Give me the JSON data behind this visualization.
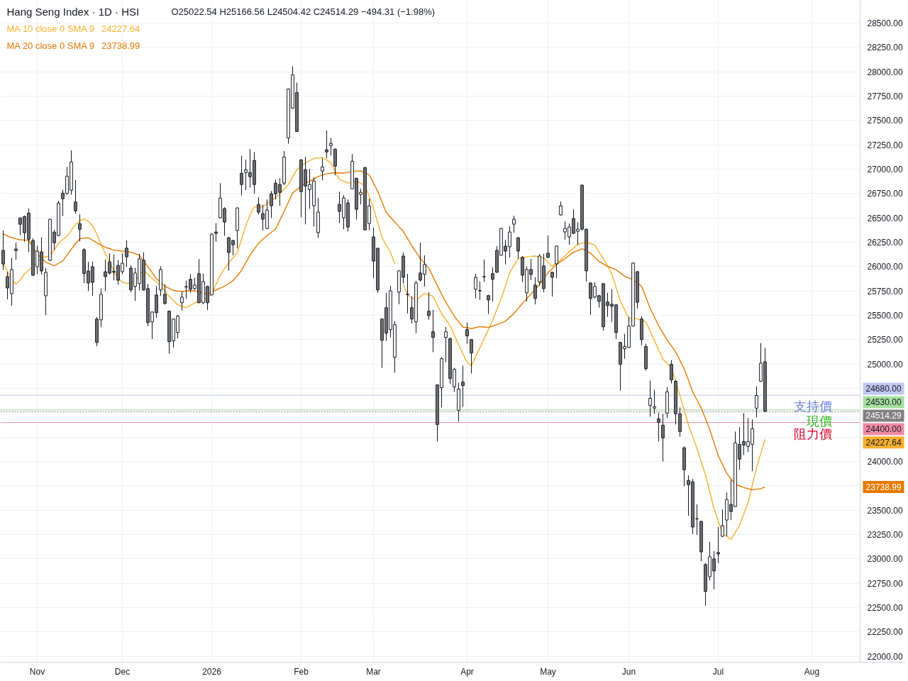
{
  "chart_data": {
    "type": "candlestick",
    "title": "Hang Seng Index · 1D · HSI",
    "subtitle": "O25022.54 H25166.56 L24504.42 C24514.29 −494.31 (−1.98%)",
    "color": "#131722",
    "categories": [
      null,
      null,
      null,
      null,
      null,
      null,
      null,
      null,
      "Nov",
      null,
      null,
      null,
      null,
      null,
      null,
      null,
      null,
      null,
      null,
      null,
      null,
      null,
      null,
      null,
      null,
      null,
      null,
      null,
      "Dec",
      null,
      null,
      null,
      null,
      null,
      null,
      null,
      null,
      null,
      null,
      null,
      null,
      null,
      null,
      null,
      null,
      null,
      null,
      null,
      null,
      "2026",
      null,
      null,
      null,
      null,
      null,
      null,
      null,
      null,
      null,
      null,
      null,
      null,
      null,
      null,
      null,
      null,
      null,
      null,
      null,
      null,
      "Feb",
      null,
      null,
      null,
      null,
      null,
      null,
      null,
      null,
      null,
      null,
      null,
      null,
      null,
      null,
      null,
      null,
      "Mar",
      null,
      null,
      null,
      null,
      null,
      null,
      null,
      null,
      null,
      null,
      null,
      null,
      null,
      null,
      null,
      null,
      null,
      null,
      null,
      null,
      null,
      "Apr",
      null,
      null,
      null,
      null,
      null,
      null,
      null,
      null,
      null,
      null,
      null,
      null,
      null,
      null,
      null,
      null,
      null,
      null,
      "May",
      null,
      null,
      null,
      null,
      null,
      null,
      null,
      null,
      null,
      null,
      null,
      null,
      null,
      null,
      null,
      null,
      null,
      null,
      "Jun",
      null,
      null,
      null,
      null,
      null,
      null,
      null,
      null,
      null,
      null,
      null,
      null,
      null,
      null,
      null,
      null,
      null,
      null,
      null,
      null,
      "Jul",
      null,
      null,
      null,
      null,
      null,
      null,
      null,
      null,
      null,
      null,
      null,
      null,
      null,
      null,
      null,
      null,
      null,
      null,
      null,
      null,
      null,
      "Aug"
    ],
    "ohlc": [
      [
        26165,
        26371,
        25967,
        26027
      ],
      [
        25897,
        25947,
        25664,
        25780
      ],
      [
        25722,
        26088,
        25599,
        25969
      ],
      [
        26180,
        26245,
        26071,
        26165
      ],
      [
        26499,
        26505,
        26323,
        26434
      ],
      [
        26514,
        26524,
        26255,
        26347
      ],
      [
        26550,
        26596,
        26148,
        26281
      ],
      [
        26267,
        26291,
        25905,
        25911
      ],
      [
        25998,
        26216,
        25923,
        26158
      ],
      [
        26151,
        26298,
        25918,
        25955
      ],
      [
        25700,
        25986,
        25502,
        25940
      ],
      [
        26064,
        26490,
        26060,
        26485
      ],
      [
        26354,
        26378,
        26170,
        26245
      ],
      [
        26318,
        26674,
        26311,
        26652
      ],
      [
        26754,
        26790,
        26519,
        26696
      ],
      [
        26751,
        27022,
        26742,
        26928
      ],
      [
        26783,
        27192,
        26737,
        27073
      ],
      [
        26662,
        26887,
        26543,
        26572
      ],
      [
        26441,
        26536,
        26257,
        26383
      ],
      [
        26173,
        26189,
        25829,
        25930
      ],
      [
        25955,
        26051,
        25749,
        25831
      ],
      [
        25998,
        26051,
        25698,
        25838
      ],
      [
        25461,
        25482,
        25182,
        25221
      ],
      [
        25453,
        25773,
        25378,
        25715
      ],
      [
        25947,
        26073,
        25749,
        25897
      ],
      [
        26049,
        26136,
        25918,
        25933
      ],
      [
        25952,
        26124,
        25858,
        25942
      ],
      [
        26010,
        26066,
        25814,
        25860
      ],
      [
        25947,
        26136,
        25923,
        26035
      ],
      [
        26189,
        26269,
        25996,
        26100
      ],
      [
        25984,
        26015,
        25737,
        25761
      ],
      [
        25796,
        25987,
        25648,
        25934
      ],
      [
        25825,
        26130,
        25755,
        26079
      ],
      [
        26065,
        26147,
        25755,
        25760
      ],
      [
        25774,
        25820,
        25387,
        25425
      ],
      [
        25433,
        25540,
        25256,
        25534
      ],
      [
        25709,
        25798,
        25474,
        25527
      ],
      [
        25760,
        26002,
        25697,
        25970
      ],
      [
        25716,
        25820,
        25609,
        25622
      ],
      [
        25542,
        25548,
        25106,
        25229
      ],
      [
        25237,
        25466,
        25169,
        25462
      ],
      [
        25324,
        25503,
        25263,
        25491
      ],
      [
        25629,
        25745,
        25549,
        25687
      ],
      [
        25795,
        25856,
        25670,
        25790
      ],
      [
        25869,
        25922,
        25731,
        25767
      ],
      [
        25774,
        25885,
        25755,
        25810
      ],
      [
        25927,
        26079,
        25625,
        25629
      ],
      [
        25629,
        25927,
        25614,
        25847
      ],
      [
        25796,
        25803,
        25554,
        25629
      ],
      [
        25709,
        26341,
        25705,
        26333
      ],
      [
        26355,
        26445,
        26256,
        26341
      ],
      [
        26500,
        26856,
        26496,
        26704
      ],
      [
        26595,
        26609,
        26316,
        26457
      ],
      [
        26297,
        26304,
        25960,
        26144
      ],
      [
        26268,
        26272,
        26115,
        26224
      ],
      [
        26370,
        26606,
        26188,
        26602
      ],
      [
        26958,
        27139,
        26730,
        26842
      ],
      [
        26965,
        27096,
        26784,
        26992
      ],
      [
        26965,
        27205,
        26810,
        26922
      ],
      [
        27089,
        27176,
        26747,
        26842
      ],
      [
        26638,
        26711,
        26534,
        26558
      ],
      [
        26544,
        26634,
        26370,
        26486
      ],
      [
        26391,
        26689,
        26385,
        26580
      ],
      [
        26747,
        26776,
        26498,
        26624
      ],
      [
        26856,
        26893,
        26689,
        26747
      ],
      [
        26842,
        26907,
        26624,
        26762
      ],
      [
        26856,
        27186,
        26834,
        27125
      ],
      [
        27321,
        27828,
        27261,
        27822
      ],
      [
        27626,
        28055,
        27619,
        27967
      ],
      [
        27786,
        27888,
        27382,
        27386
      ],
      [
        27096,
        27100,
        26505,
        26769
      ],
      [
        26994,
        27127,
        26433,
        26827
      ],
      [
        26791,
        27002,
        26592,
        26842
      ],
      [
        26624,
        26914,
        26411,
        26878
      ],
      [
        26348,
        26704,
        26295,
        26559
      ],
      [
        26980,
        27110,
        26885,
        27023
      ],
      [
        27198,
        27396,
        27110,
        27176
      ],
      [
        27241,
        27321,
        27140,
        27263
      ],
      [
        27205,
        27212,
        26936,
        27031
      ],
      [
        26638,
        26769,
        26447,
        26566
      ],
      [
        26500,
        26733,
        26382,
        26704
      ],
      [
        26653,
        26689,
        26360,
        26406
      ],
      [
        26798,
        27154,
        26795,
        27081
      ],
      [
        26907,
        26910,
        26483,
        26588
      ],
      [
        26740,
        26798,
        26638,
        26762
      ],
      [
        27016,
        27023,
        26373,
        26377
      ],
      [
        26442,
        26697,
        26373,
        26624
      ],
      [
        26304,
        26399,
        25881,
        26057
      ],
      [
        26188,
        26192,
        25731,
        25760
      ],
      [
        25462,
        25466,
        24961,
        25244
      ],
      [
        25578,
        25731,
        25237,
        25317
      ],
      [
        25353,
        25803,
        25273,
        25752
      ],
      [
        25070,
        25440,
        24910,
        25404
      ],
      [
        25738,
        25960,
        25614,
        25956
      ],
      [
        26108,
        26145,
        25825,
        25890
      ],
      [
        25716,
        25927,
        25520,
        25712
      ],
      [
        25578,
        25694,
        25418,
        25462
      ],
      [
        25433,
        25854,
        25317,
        25832
      ],
      [
        25934,
        26246,
        25847,
        25861
      ],
      [
        25919,
        26116,
        25796,
        26021
      ],
      [
        25542,
        25738,
        25455,
        25498
      ],
      [
        25331,
        25556,
        25121,
        25273
      ],
      [
        24786,
        24790,
        24205,
        24380
      ],
      [
        24757,
        25070,
        24554,
        25055
      ],
      [
        25273,
        25382,
        25019,
        25331
      ],
      [
        25259,
        25273,
        24794,
        24852
      ],
      [
        24765,
        24961,
        24714,
        24946
      ],
      [
        24525,
        24808,
        24409,
        24743
      ],
      [
        24816,
        24983,
        24561,
        24779
      ],
      [
        25353,
        25426,
        25208,
        25288
      ],
      [
        25251,
        25255,
        24903,
        25113
      ],
      [
        25767,
        25927,
        25673,
        25890
      ],
      [
        25754,
        25847,
        25658,
        25750
      ],
      [
        25897,
        26072,
        25844,
        25893
      ],
      [
        25702,
        25709,
        25513,
        25658
      ],
      [
        25927,
        25992,
        25643,
        25869
      ],
      [
        26166,
        26210,
        25937,
        25941
      ],
      [
        26116,
        26399,
        26112,
        26392
      ],
      [
        26210,
        26275,
        26021,
        26159
      ],
      [
        26203,
        26413,
        26094,
        26355
      ],
      [
        26435,
        26522,
        26348,
        26486
      ],
      [
        26297,
        26301,
        26079,
        26159
      ],
      [
        26094,
        26108,
        25840,
        25912
      ],
      [
        25731,
        25999,
        25641,
        25970
      ],
      [
        25970,
        26079,
        25861,
        25919
      ],
      [
        25810,
        25890,
        25612,
        25673
      ],
      [
        25840,
        26130,
        25803,
        26108
      ],
      [
        26007,
        26130,
        25738,
        25774
      ],
      [
        26137,
        26319,
        26090,
        26094
      ],
      [
        25941,
        25945,
        25692,
        25890
      ],
      [
        26028,
        26214,
        25881,
        26210
      ],
      [
        26530,
        26667,
        26522,
        26624
      ],
      [
        26355,
        26464,
        26275,
        26392
      ],
      [
        26304,
        26442,
        26224,
        26406
      ],
      [
        26493,
        26588,
        26333,
        26341
      ],
      [
        26362,
        26457,
        26224,
        26384
      ],
      [
        26835,
        26842,
        26370,
        26384
      ],
      [
        26384,
        26388,
        25847,
        25956
      ],
      [
        25832,
        25836,
        25505,
        25673
      ],
      [
        25687,
        25840,
        25673,
        25796
      ],
      [
        25702,
        25709,
        25578,
        25643
      ],
      [
        25825,
        25829,
        25343,
        25382
      ],
      [
        25636,
        25731,
        25484,
        25600
      ],
      [
        25614,
        25767,
        25433,
        25593
      ],
      [
        25607,
        25611,
        25256,
        25324
      ],
      [
        25222,
        25226,
        24728,
        24997
      ],
      [
        25157,
        25309,
        25055,
        25179
      ],
      [
        25171,
        25484,
        25168,
        25389
      ],
      [
        25389,
        26043,
        25385,
        26036
      ],
      [
        25948,
        25952,
        25568,
        25634
      ],
      [
        25462,
        25491,
        25193,
        25251
      ],
      [
        25179,
        25208,
        24932,
        24953
      ],
      [
        24576,
        24830,
        24460,
        24648
      ],
      [
        24547,
        24736,
        24489,
        24561
      ],
      [
        24438,
        24503,
        24205,
        24402
      ],
      [
        24372,
        24489,
        23999,
        24242
      ],
      [
        24496,
        24765,
        24445,
        24714
      ],
      [
        24997,
        25041,
        24801,
        24837
      ],
      [
        24823,
        24837,
        24380,
        24489
      ],
      [
        24489,
        24554,
        24254,
        24307
      ],
      [
        24140,
        24155,
        23745,
        23915
      ],
      [
        23806,
        23857,
        23443,
        23762
      ],
      [
        23791,
        23820,
        23254,
        23327
      ],
      [
        23413,
        23559,
        23247,
        23409
      ],
      [
        23385,
        23389,
        22976,
        23072
      ],
      [
        22942,
        22959,
        22520,
        22666
      ],
      [
        22818,
        23174,
        22780,
        23022
      ],
      [
        23000,
        23080,
        22688,
        22876
      ],
      [
        23065,
        23327,
        22956,
        23051
      ],
      [
        23232,
        23508,
        23225,
        23341
      ],
      [
        23399,
        23683,
        23232,
        23610
      ],
      [
        23559,
        23813,
        23399,
        23486
      ],
      [
        23537,
        24307,
        23533,
        24191
      ],
      [
        24176,
        24351,
        23915,
        24024
      ],
      [
        24205,
        24496,
        24067,
        24169
      ],
      [
        24155,
        24445,
        24096,
        24205
      ],
      [
        24176,
        24431,
        23900,
        24336
      ],
      [
        24547,
        24772,
        24452,
        24677
      ],
      [
        24823,
        25215,
        24819,
        25008.6
      ],
      [
        25022.54,
        25166.56,
        24504.42,
        24514.29
      ],
      null,
      null,
      null,
      null,
      null,
      null,
      null,
      null,
      null,
      null,
      null
    ],
    "colors": [
      "#737373",
      "#737373",
      "#ffffff",
      "#737373",
      "#737373",
      "#737373",
      "#737373",
      "#737373",
      "#ffffff",
      "#737373",
      "#ffffff",
      "#ffffff",
      "#737373",
      "#ffffff",
      "#737373",
      "#ffffff",
      "#ffffff",
      "#737373",
      "#737373",
      "#737373",
      "#737373",
      "#737373",
      "#737373",
      "#ffffff",
      "#737373",
      "#737373",
      "#737373",
      "#737373",
      "#ffffff",
      "#737373",
      "#737373",
      "#ffffff",
      "#ffffff",
      "#737373",
      "#737373",
      "#ffffff",
      "#737373",
      "#ffffff",
      "#737373",
      "#737373",
      "#ffffff",
      "#ffffff",
      "#ffffff",
      "#737373",
      "#737373",
      "#ffffff",
      "#737373",
      "#ffffff",
      "#737373",
      "#ffffff",
      "#737373",
      "#ffffff",
      "#737373",
      "#737373",
      "#737373",
      "#ffffff",
      "#737373",
      "#ffffff",
      "#737373",
      "#737373",
      "#737373",
      "#737373",
      "#ffffff",
      "#737373",
      "#737373",
      "#737373",
      "#ffffff",
      "#ffffff",
      "#ffffff",
      "#737373",
      "#737373",
      "#737373",
      "#ffffff",
      "#ffffff",
      "#ffffff",
      "#ffffff",
      "#737373",
      "#ffffff",
      "#737373",
      "#737373",
      "#ffffff",
      "#737373",
      "#ffffff",
      "#737373",
      "#ffffff",
      "#737373",
      "#ffffff",
      "#737373",
      "#737373",
      "#737373",
      "#737373",
      "#ffffff",
      "#ffffff",
      "#ffffff",
      "#737373",
      "#737373",
      "#737373",
      "#ffffff",
      "#737373",
      "#ffffff",
      "#737373",
      "#737373",
      "#737373",
      "#ffffff",
      "#ffffff",
      "#737373",
      "#ffffff",
      "#ffffff",
      "#737373",
      "#737373",
      "#737373",
      "#ffffff",
      "#737373",
      "#737373",
      "#737373",
      "#737373",
      "#737373",
      "#ffffff",
      "#737373",
      "#ffffff",
      "#ffffff",
      "#737373",
      "#737373",
      "#ffffff",
      "#737373",
      "#737373",
      "#ffffff",
      "#737373",
      "#737373",
      "#737373",
      "#ffffff",
      "#ffffff",
      "#ffffff",
      "#ffffff",
      "#737373",
      "#ffffff",
      "#737373",
      "#737373",
      "#737373",
      "#ffffff",
      "#737373",
      "#737373",
      "#737373",
      "#737373",
      "#737373",
      "#737373",
      "#ffffff",
      "#ffffff",
      "#ffffff",
      "#737373",
      "#737373",
      "#737373",
      "#ffffff",
      "#ffffff",
      "#737373",
      "#737373",
      "#ffffff",
      "#737373",
      "#737373",
      "#737373",
      "#737373",
      "#737373",
      "#737373",
      "#737373",
      "#737373",
      "#737373",
      "#ffffff",
      "#737373",
      "#737373",
      "#ffffff",
      "#ffffff",
      "#737373",
      "#ffffff",
      "#737373",
      "#737373",
      "#ffffff",
      "#ffffff",
      "#ffffff",
      "#ffffff",
      "#737373",
      null,
      null,
      null,
      null,
      null,
      null,
      null,
      null,
      null,
      null,
      null
    ],
    "series": [
      {
        "type": "line",
        "name": "MA 10 close 0 SMA 9",
        "color": "#f8b030",
        "values": [
          26033,
          25950,
          25864,
          25820,
          25860,
          25924,
          25965,
          25997,
          26045,
          26094,
          26100,
          26106,
          26170,
          26239,
          26275,
          26311,
          26372,
          26433,
          26470,
          26488,
          26465,
          26420,
          26330,
          26227,
          26135,
          26045,
          25955,
          25876,
          25840,
          25827,
          25835,
          25852,
          25910,
          25961,
          25920,
          25876,
          25842,
          25808,
          25750,
          25694,
          25650,
          25610,
          25590,
          25580,
          25600,
          25629,
          25645,
          25658,
          25685,
          25718,
          25815,
          25912,
          25980,
          26040,
          26090,
          26142,
          26280,
          26420,
          26530,
          26614,
          26614,
          26614,
          26645,
          26675,
          26710,
          26747,
          26795,
          26844,
          26920,
          26997,
          27030,
          27062,
          27088,
          27110,
          27115,
          27118,
          27095,
          27062,
          26980,
          26897,
          26875,
          26856,
          26866,
          26876,
          26855,
          26832,
          26720,
          26602,
          26450,
          26300,
          26220,
          26142,
          26030,
          null,
          25815,
          25711,
          25680,
          25653,
          25690,
          25726,
          25710,
          25694,
          25605,
          25518,
          25455,
          25392,
          25295,
          25198,
          25107,
          25016,
          24980,
          25077,
          25168,
          25259,
          25355,
          25452,
          25560,
          25670,
          25800,
          25936,
          26010,
          26082,
          26092,
          26103,
          26105,
          26108,
          26097,
          26086,
          26044,
          26002,
          26035,
          26069,
          26110,
          26154,
          26190,
          26227,
          26240,
          26251,
          26235,
          26220,
          26150,
          26082,
          26003,
          25924,
          25785,
          25646,
          25557,
          25469,
          25466,
          25464,
          25450,
          25433,
          25337,
          25242,
          25145,
          25048,
          25005,
          24961,
          24820,
          24677,
          24526,
          24375,
          24254,
          24133,
          23997,
          23862,
          23689,
          23516,
          23388,
          23261,
          23231,
          23201,
          23273,
          23346,
          23461,
          23576,
          23757,
          23939,
          24083,
          24227.64,
          null,
          null,
          null,
          null,
          null,
          null,
          null,
          null,
          null,
          null,
          null
        ]
      },
      {
        "type": "line",
        "name": "MA 20 close 0 SMA 9",
        "color": "#e67a00",
        "values": [
          26336,
          26315,
          26295,
          26285,
          26275,
          26272,
          26270,
          26200,
          26130,
          26088,
          26045,
          26027,
          26009,
          26033,
          26057,
          26118,
          26178,
          26233,
          26287,
          26291,
          26295,
          26270,
          26244,
          26221,
          26198,
          26184,
          26169,
          26164,
          26159,
          26153,
          26147,
          26133,
          26118,
          26058,
          25997,
          25937,
          25876,
          25837,
          25798,
          25777,
          25755,
          25749,
          25743,
          25749,
          25755,
          25748,
          25740,
          25729,
          25718,
          25739,
          25760,
          25779,
          25798,
          25827,
          25856,
          25908,
          25960,
          26039,
          26118,
          26179,
          26239,
          26279,
          26319,
          26352,
          26384,
          26475,
          26566,
          26661,
          26755,
          26791,
          26827,
          26852,
          26876,
          26900,
          26924,
          26939,
          26953,
          26958,
          26963,
          26961,
          26958,
          26968,
          26977,
          26980,
          26982,
          26962,
          26941,
          26857,
          26772,
          26663,
          26554,
          26506,
          26457,
          26409,
          26360,
          26288,
          26215,
          26149,
          26082,
          26034,
          25985,
          25894,
          25803,
          25719,
          25634,
          25562,
          25489,
          25435,
          25380,
          25372,
          25363,
          25374,
          25384,
          25380,
          25375,
          25390,
          25404,
          25422,
          25440,
          25479,
          25518,
          25570,
          25622,
          25670,
          25718,
          25767,
          25815,
          25876,
          25936,
          25979,
          26021,
          26052,
          26082,
          26115,
          26147,
          26165,
          26183,
          26160,
          26137,
          26095,
          26052,
          26027,
          26002,
          25985,
          25968,
          25934,
          25900,
          25882,
          25864,
          25831,
          25798,
          25686,
          25573,
          25483,
          25392,
          25319,
          25246,
          25186,
          25125,
          25038,
          24951,
          24833,
          24714,
          24632,
          24549,
          24438,
          24326,
          24193,
          24060,
          23970,
          23879,
          23822,
          23765,
          23749,
          23733,
          23721,
          23709,
          23715,
          23721,
          23738.99,
          null,
          null,
          null,
          null,
          null,
          null,
          null,
          null,
          null,
          null,
          null
        ]
      }
    ],
    "ref_lines": [
      {
        "axis": "y",
        "value": 24680,
        "label": "支持價",
        "color": "#c0c8f0",
        "line_style": "solid"
      },
      {
        "axis": "y",
        "value": 24530,
        "label": "現價",
        "color": "#a5e0a0",
        "line_style": "solid"
      },
      {
        "axis": "y",
        "value": 24514.29,
        "label": null,
        "color": "#808080",
        "line_style": "dotted"
      },
      {
        "axis": "y",
        "value": 24400,
        "label": "阻力價",
        "color": "#f08aa5",
        "line_style": "solid"
      }
    ],
    "annotations": [
      "24227.64",
      "23738.99",
      "24227.64",
      "23738.99",
      {
        "text": "24680.00",
        "y": 24680
      },
      {
        "text": "24530.00",
        "y": 24530
      },
      {
        "text": "24514.29",
        "y": 24514.29
      },
      {
        "text": "24400.00",
        "y": 24400
      }
    ],
    "ylim": [
      21940,
      28732
    ],
    "yticks": [
      {
        "value": 22000,
        "label": "22000.00"
      },
      {
        "value": 22250,
        "label": "22250.00"
      },
      {
        "value": 22500,
        "label": "22500.00"
      },
      {
        "value": 22750,
        "label": "22750.00"
      },
      {
        "value": 23000,
        "label": "23000.00"
      },
      {
        "value": 23250,
        "label": "23250.00"
      },
      {
        "value": 23500,
        "label": "23500.00"
      },
      {
        "value": 23750,
        "label": null
      },
      {
        "value": 24000,
        "label": "24000.00"
      },
      {
        "value": 24250,
        "label": null
      },
      {
        "value": 24500,
        "label": null
      },
      {
        "value": 24750,
        "label": null
      },
      {
        "value": 25000,
        "label": "25000.00"
      },
      {
        "value": 25250,
        "label": "25250.00"
      },
      {
        "value": 25500,
        "label": "25500.00"
      },
      {
        "value": 25750,
        "label": "25750.00"
      },
      {
        "value": 26000,
        "label": "26000.00"
      },
      {
        "value": 26250,
        "label": "26250.00"
      },
      {
        "value": 26500,
        "label": "26500.00"
      },
      {
        "value": 26750,
        "label": "26750.00"
      },
      {
        "value": 27000,
        "label": "27000.00"
      },
      {
        "value": 27250,
        "label": "27250.00"
      },
      {
        "value": 27500,
        "label": "27500.00"
      },
      {
        "value": 27750,
        "label": "27750.00"
      },
      {
        "value": 28000,
        "label": "28000.00"
      },
      {
        "value": 28250,
        "label": "28250.00"
      },
      {
        "value": 28500,
        "label": "28500.00"
      }
    ],
    "grid": true,
    "legend": "top left"
  }
}
